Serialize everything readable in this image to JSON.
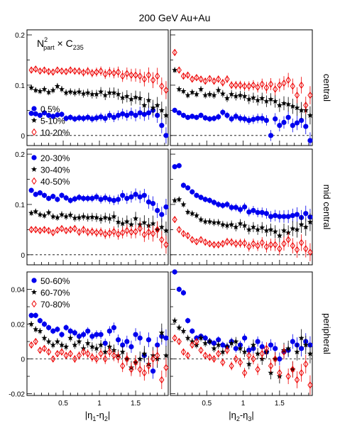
{
  "figure": {
    "title": "200 GeV Au+Au",
    "formula": {
      "base": "N",
      "sup": "2",
      "sub": "part",
      "times": " × C",
      "sub2": "235"
    }
  },
  "colors": {
    "blue": "#0000ee",
    "black": "#000000",
    "red": "#ee0000",
    "frame": "#000000",
    "zero_line": "#000000"
  },
  "icons": {
    "circle": "filled-circle-marker",
    "star": "star-marker",
    "diamond": "open-diamond-marker"
  },
  "chart_data": [
    {
      "type": "scatter",
      "panel": "central-left",
      "row_label": "central",
      "xlabel": "",
      "xlim": [
        0,
        1.95
      ],
      "ylim": [
        -0.02,
        0.21
      ],
      "yticks": [
        "0",
        "0.1",
        "0.2"
      ],
      "legend": [
        "0.5%",
        "5-10%",
        "10-20%"
      ],
      "legend_position": "bottom-left",
      "x": [
        0.06,
        0.12,
        0.18,
        0.24,
        0.3,
        0.36,
        0.42,
        0.48,
        0.54,
        0.6,
        0.66,
        0.72,
        0.78,
        0.84,
        0.9,
        0.96,
        1.02,
        1.08,
        1.14,
        1.2,
        1.26,
        1.32,
        1.38,
        1.44,
        1.5,
        1.56,
        1.62,
        1.68,
        1.74,
        1.8,
        1.86,
        1.92
      ],
      "series": [
        {
          "marker": "circle",
          "y": [
            0.044,
            0.043,
            0.04,
            0.045,
            0.04,
            0.038,
            0.041,
            0.042,
            0.034,
            0.036,
            0.033,
            0.035,
            0.034,
            0.036,
            0.033,
            0.035,
            0.037,
            0.034,
            0.04,
            0.036,
            0.04,
            0.043,
            0.04,
            0.044,
            0.04,
            0.045,
            0.042,
            0.045,
            0.05,
            0.04,
            0.02,
            0.0
          ]
        },
        {
          "marker": "star",
          "y": [
            0.095,
            0.09,
            0.088,
            0.092,
            0.086,
            0.09,
            0.098,
            0.092,
            0.085,
            0.087,
            0.085,
            0.087,
            0.083,
            0.085,
            0.082,
            0.082,
            0.087,
            0.08,
            0.085,
            0.085,
            0.082,
            0.075,
            0.078,
            0.072,
            0.076,
            0.074,
            0.06,
            0.07,
            0.055,
            0.06,
            0.05,
            0.04
          ]
        },
        {
          "marker": "diamond",
          "y": [
            0.13,
            0.132,
            0.128,
            0.13,
            0.127,
            0.126,
            0.13,
            0.128,
            0.127,
            0.13,
            0.128,
            0.128,
            0.125,
            0.128,
            0.124,
            0.126,
            0.128,
            0.122,
            0.126,
            0.124,
            0.126,
            0.118,
            0.123,
            0.12,
            0.12,
            0.118,
            0.112,
            0.12,
            0.11,
            0.118,
            0.098,
            0.09
          ]
        }
      ]
    },
    {
      "type": "scatter",
      "panel": "central-right",
      "row_label": "central",
      "xlabel": "",
      "xlim": [
        0,
        1.95
      ],
      "ylim": [
        -0.02,
        0.21
      ],
      "x": [
        0.06,
        0.12,
        0.18,
        0.24,
        0.3,
        0.36,
        0.42,
        0.48,
        0.54,
        0.6,
        0.66,
        0.72,
        0.78,
        0.84,
        0.9,
        0.96,
        1.02,
        1.08,
        1.14,
        1.2,
        1.26,
        1.32,
        1.38,
        1.44,
        1.5,
        1.56,
        1.62,
        1.68,
        1.74,
        1.8,
        1.86,
        1.92
      ],
      "series": [
        {
          "marker": "circle",
          "y": [
            0.05,
            0.045,
            0.04,
            0.036,
            0.038,
            0.036,
            0.04,
            0.035,
            0.033,
            0.034,
            0.037,
            0.046,
            0.04,
            0.033,
            0.038,
            0.034,
            0.033,
            0.03,
            0.032,
            0.034,
            0.034,
            0.03,
            0.0,
            0.033,
            0.02,
            0.026,
            0.036,
            0.02,
            0.025,
            0.03,
            0.018,
            -0.01
          ]
        },
        {
          "marker": "star",
          "y": [
            0.13,
            0.092,
            0.088,
            0.08,
            0.086,
            0.082,
            0.092,
            0.08,
            0.082,
            0.08,
            0.09,
            0.083,
            0.074,
            0.082,
            0.078,
            0.08,
            0.078,
            0.072,
            0.075,
            0.07,
            0.074,
            0.068,
            0.072,
            0.068,
            0.06,
            0.064,
            0.062,
            0.058,
            0.055,
            0.05,
            0.05,
            0.04
          ]
        },
        {
          "marker": "diamond",
          "y": [
            0.165,
            0.13,
            0.118,
            0.12,
            0.112,
            0.115,
            0.112,
            0.108,
            0.113,
            0.108,
            0.112,
            0.105,
            0.112,
            0.1,
            0.1,
            0.1,
            0.098,
            0.098,
            0.1,
            0.096,
            0.102,
            0.095,
            0.102,
            0.092,
            0.1,
            0.104,
            0.11,
            0.098,
            0.08,
            0.1,
            0.06,
            0.08
          ]
        }
      ]
    },
    {
      "type": "scatter",
      "panel": "mid-central-left",
      "row_label": "mid central",
      "xlabel": "",
      "xlim": [
        0,
        1.95
      ],
      "ylim": [
        -0.02,
        0.21
      ],
      "yticks": [
        "0",
        "0.1",
        "0.2"
      ],
      "legend": [
        "20-30%",
        "30-40%",
        "40-50%"
      ],
      "legend_position": "top-left",
      "x": [
        0.06,
        0.12,
        0.18,
        0.24,
        0.3,
        0.36,
        0.42,
        0.48,
        0.54,
        0.6,
        0.66,
        0.72,
        0.78,
        0.84,
        0.9,
        0.96,
        1.02,
        1.08,
        1.14,
        1.2,
        1.26,
        1.32,
        1.38,
        1.44,
        1.5,
        1.56,
        1.62,
        1.68,
        1.74,
        1.8,
        1.86,
        1.92
      ],
      "series": [
        {
          "marker": "circle",
          "y": [
            0.128,
            0.12,
            0.123,
            0.118,
            0.112,
            0.116,
            0.11,
            0.118,
            0.113,
            0.108,
            0.111,
            0.114,
            0.112,
            0.112,
            0.112,
            0.115,
            0.11,
            0.113,
            0.11,
            0.108,
            0.11,
            0.118,
            0.112,
            0.115,
            0.12,
            0.115,
            0.118,
            0.105,
            0.102,
            0.088,
            0.08,
            0.095
          ]
        },
        {
          "marker": "star",
          "y": [
            0.083,
            0.086,
            0.08,
            0.078,
            0.084,
            0.076,
            0.074,
            0.08,
            0.076,
            0.079,
            0.073,
            0.074,
            0.076,
            0.074,
            0.075,
            0.074,
            0.071,
            0.074,
            0.072,
            0.076,
            0.065,
            0.062,
            0.066,
            0.06,
            0.072,
            0.06,
            0.064,
            0.058,
            0.062,
            0.05,
            0.055,
            0.048
          ]
        },
        {
          "marker": "diamond",
          "y": [
            0.05,
            0.05,
            0.048,
            0.05,
            0.048,
            0.044,
            0.049,
            0.052,
            0.048,
            0.05,
            0.052,
            0.045,
            0.05,
            0.045,
            0.046,
            0.044,
            0.045,
            0.041,
            0.043,
            0.046,
            0.041,
            0.044,
            0.048,
            0.045,
            0.046,
            0.052,
            0.04,
            0.045,
            0.042,
            0.05,
            0.03,
            0.02
          ]
        }
      ]
    },
    {
      "type": "scatter",
      "panel": "mid-central-right",
      "row_label": "mid central",
      "xlabel": "",
      "xlim": [
        0,
        1.95
      ],
      "ylim": [
        -0.02,
        0.21
      ],
      "x": [
        0.06,
        0.12,
        0.18,
        0.24,
        0.3,
        0.36,
        0.42,
        0.48,
        0.54,
        0.6,
        0.66,
        0.72,
        0.78,
        0.84,
        0.9,
        0.96,
        1.02,
        1.08,
        1.14,
        1.2,
        1.26,
        1.32,
        1.38,
        1.44,
        1.5,
        1.56,
        1.62,
        1.68,
        1.74,
        1.8,
        1.86,
        1.92
      ],
      "series": [
        {
          "marker": "circle",
          "y": [
            0.175,
            0.177,
            0.138,
            0.133,
            0.125,
            0.118,
            0.114,
            0.11,
            0.108,
            0.104,
            0.1,
            0.098,
            0.1,
            0.094,
            0.094,
            0.09,
            0.095,
            0.085,
            0.088,
            0.084,
            0.084,
            0.082,
            0.076,
            0.078,
            0.076,
            0.076,
            0.076,
            0.078,
            0.08,
            0.074,
            0.082,
            0.075
          ]
        },
        {
          "marker": "star",
          "y": [
            0.108,
            0.11,
            0.1,
            0.085,
            0.082,
            0.078,
            0.07,
            0.066,
            0.066,
            0.064,
            0.064,
            0.06,
            0.058,
            0.06,
            0.055,
            0.062,
            0.058,
            0.05,
            0.055,
            0.05,
            0.054,
            0.048,
            0.05,
            0.046,
            0.038,
            0.048,
            0.044,
            0.052,
            0.05,
            0.06,
            0.055,
            0.065
          ]
        },
        {
          "marker": "diamond",
          "y": [
            0.07,
            0.05,
            0.042,
            0.038,
            0.03,
            0.026,
            0.03,
            0.025,
            0.022,
            0.02,
            0.02,
            0.022,
            0.026,
            0.025,
            0.022,
            0.023,
            0.023,
            0.016,
            0.022,
            0.018,
            0.024,
            0.016,
            0.02,
            0.02,
            0.012,
            0.022,
            0.03,
            0.018,
            0.01,
            0.024,
            0.012,
            0.005
          ]
        }
      ]
    },
    {
      "type": "scatter",
      "panel": "peripheral-left",
      "row_label": "peripheral",
      "xlabel": "|η1-η2|",
      "xlim": [
        0,
        1.95
      ],
      "ylim": [
        -0.021,
        0.05
      ],
      "xticks": [
        "0.5",
        "1",
        "1.5"
      ],
      "yticks": [
        "-0.02",
        "0",
        "0.02",
        "0.04"
      ],
      "legend": [
        "50-60%",
        "60-70%",
        "70-80%"
      ],
      "legend_position": "top-left",
      "x": [
        0.06,
        0.12,
        0.18,
        0.24,
        0.3,
        0.36,
        0.42,
        0.48,
        0.54,
        0.6,
        0.66,
        0.72,
        0.78,
        0.84,
        0.9,
        0.96,
        1.02,
        1.08,
        1.14,
        1.2,
        1.26,
        1.32,
        1.38,
        1.44,
        1.5,
        1.56,
        1.62,
        1.68,
        1.74,
        1.8,
        1.86,
        1.92
      ],
      "series": [
        {
          "marker": "circle",
          "y": [
            0.025,
            0.025,
            0.022,
            0.02,
            0.018,
            0.016,
            0.017,
            0.014,
            0.018,
            0.016,
            0.015,
            0.013,
            0.014,
            0.016,
            0.013,
            0.014,
            0.014,
            0.009,
            0.016,
            0.018,
            0.011,
            0.008,
            0.01,
            0.007,
            0.014,
            0.012,
            0.002,
            0.011,
            -0.007,
            0.008,
            0.013,
            0.012
          ]
        },
        {
          "marker": "star",
          "y": [
            0.02,
            0.017,
            0.016,
            0.012,
            0.01,
            0.008,
            0.01,
            0.008,
            0.007,
            0.012,
            0.008,
            0.01,
            0.006,
            0.009,
            0.007,
            0.006,
            0.008,
            0.004,
            0.007,
            0.005,
            0.002,
            0.004,
            0.0,
            -0.005,
            -0.002,
            0.0,
            0.003,
            -0.003,
            0.002,
            0.0,
            0.015,
            0.002
          ]
        },
        {
          "marker": "diamond",
          "y": [
            0.008,
            0.01,
            0.005,
            0.006,
            0.004,
            0.0,
            0.003,
            0.004,
            0.002,
            0.003,
            0.0,
            0.002,
            0.004,
            0.003,
            0.001,
            0.0,
            0.003,
            0.0,
            0.004,
            0.002,
            0.001,
            -0.004,
            0.0,
            -0.006,
            -0.002,
            -0.006,
            -0.008,
            -0.004,
            0.0,
            0.002,
            -0.012,
            -0.005
          ]
        }
      ]
    },
    {
      "type": "scatter",
      "panel": "peripheral-right",
      "row_label": "peripheral",
      "xlabel": "|η2-η3|",
      "xlim": [
        0,
        1.95
      ],
      "ylim": [
        -0.021,
        0.05
      ],
      "xticks": [
        "0.5",
        "1",
        "1.5"
      ],
      "x": [
        0.06,
        0.12,
        0.18,
        0.24,
        0.3,
        0.36,
        0.42,
        0.48,
        0.54,
        0.6,
        0.66,
        0.72,
        0.78,
        0.84,
        0.9,
        0.96,
        1.02,
        1.08,
        1.14,
        1.2,
        1.26,
        1.32,
        1.38,
        1.44,
        1.5,
        1.56,
        1.62,
        1.68,
        1.74,
        1.8,
        1.86,
        1.92
      ],
      "series": [
        {
          "marker": "circle",
          "y": [
            0.05,
            0.04,
            0.038,
            0.022,
            0.016,
            0.012,
            0.013,
            0.012,
            0.01,
            0.009,
            0.011,
            0.008,
            0.007,
            0.01,
            0.006,
            0.008,
            0.012,
            0.005,
            0.006,
            0.01,
            0.007,
            0.004,
            0.008,
            0.006,
            0.0,
            0.004,
            0.005,
            0.01,
            0.008,
            0.006,
            0.01,
            0.008
          ]
        },
        {
          "marker": "star",
          "y": [
            0.022,
            0.018,
            0.016,
            0.012,
            0.01,
            0.008,
            0.012,
            0.009,
            0.01,
            0.006,
            0.008,
            0.004,
            0.007,
            0.009,
            0.01,
            0.006,
            0.004,
            -0.003,
            0.008,
            0.003,
            0.0,
            0.004,
            -0.008,
            0.0,
            -0.01,
            0.005,
            0.006,
            -0.006,
            0.004,
            0.012,
            0.008,
            0.003
          ]
        },
        {
          "marker": "diamond",
          "y": [
            0.012,
            0.01,
            0.004,
            0.002,
            0.008,
            0.01,
            0.005,
            0.002,
            0.001,
            0.0,
            0.003,
            -0.002,
            0.005,
            -0.004,
            0.0,
            -0.002,
            -0.008,
            0.002,
            0.0,
            -0.006,
            0.003,
            0.006,
            -0.004,
            0.0,
            -0.008,
            0.004,
            -0.01,
            -0.006,
            -0.012,
            -0.008,
            -0.003,
            -0.015
          ]
        }
      ]
    }
  ]
}
